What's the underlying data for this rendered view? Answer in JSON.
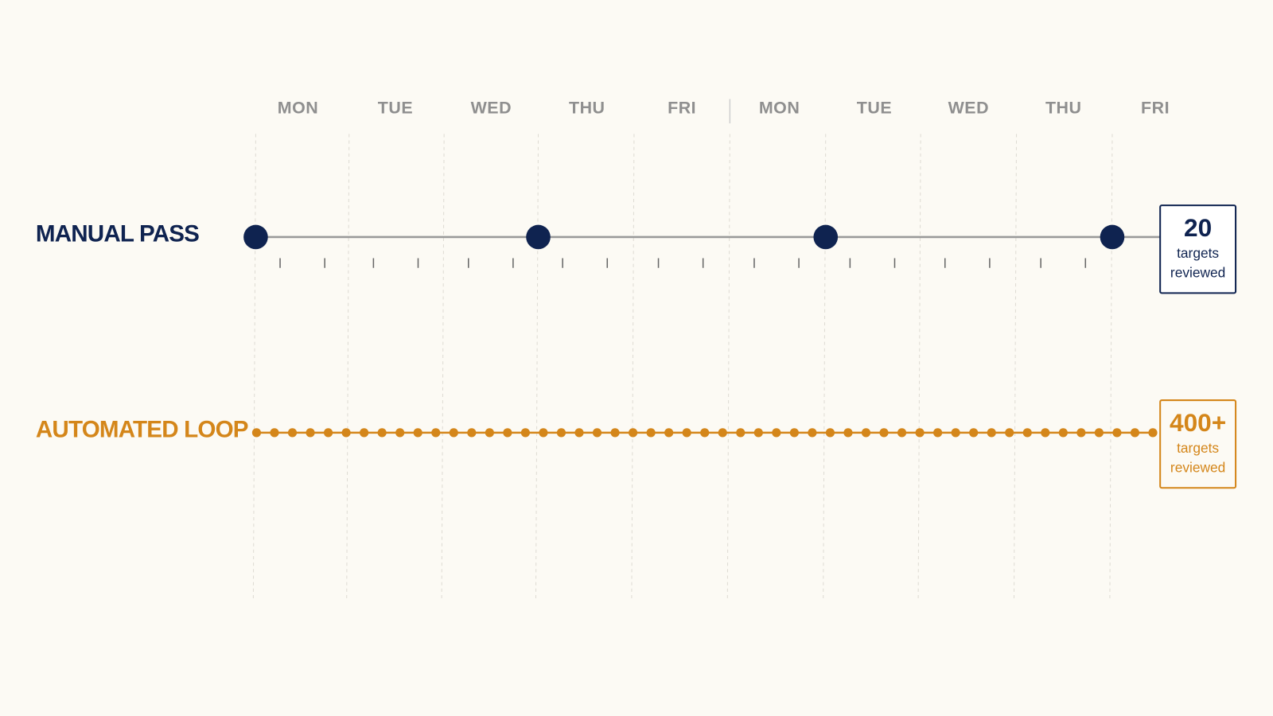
{
  "days": [
    "MON",
    "TUE",
    "WED",
    "THU",
    "FRI",
    "MON",
    "TUE",
    "WED",
    "THU",
    "FRI"
  ],
  "rows": [
    {
      "label": "MANUAL PASS",
      "count": "20",
      "caption": [
        "targets",
        "reviewed"
      ]
    },
    {
      "label": "AUTOMATED LOOP",
      "count": "400+",
      "caption": [
        "targets",
        "reviewed"
      ]
    }
  ]
}
